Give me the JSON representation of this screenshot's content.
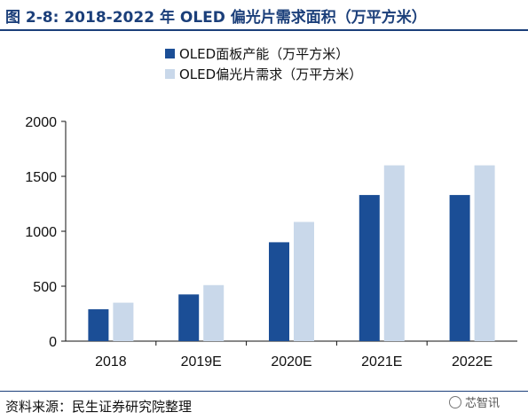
{
  "title": "图 2-8: 2018-2022 年 OLED 偏光片需求面积（万平方米）",
  "source": "资料来源：民生证券研究院整理",
  "watermark": "芯智讯",
  "watermark_icon": "wechat-icon",
  "colors": {
    "capacity": "#1b4e96",
    "demand": "#c9d8ea",
    "title": "#1b3f7a"
  },
  "chart_data": {
    "type": "bar",
    "title": "",
    "xlabel": "",
    "ylabel": "",
    "categories": [
      "2018",
      "2019E",
      "2020E",
      "2021E",
      "2022E"
    ],
    "ylim": [
      0,
      2000
    ],
    "yticks": [
      0,
      500,
      1000,
      1500,
      2000
    ],
    "grid": false,
    "legend_position": "top-center",
    "series": [
      {
        "name": "OLED面板产能（万平方米）",
        "values": [
          290,
          425,
          900,
          1330,
          1330
        ]
      },
      {
        "name": "OLED偏光片需求（万平方米）",
        "values": [
          350,
          510,
          1085,
          1600,
          1600
        ]
      }
    ]
  }
}
